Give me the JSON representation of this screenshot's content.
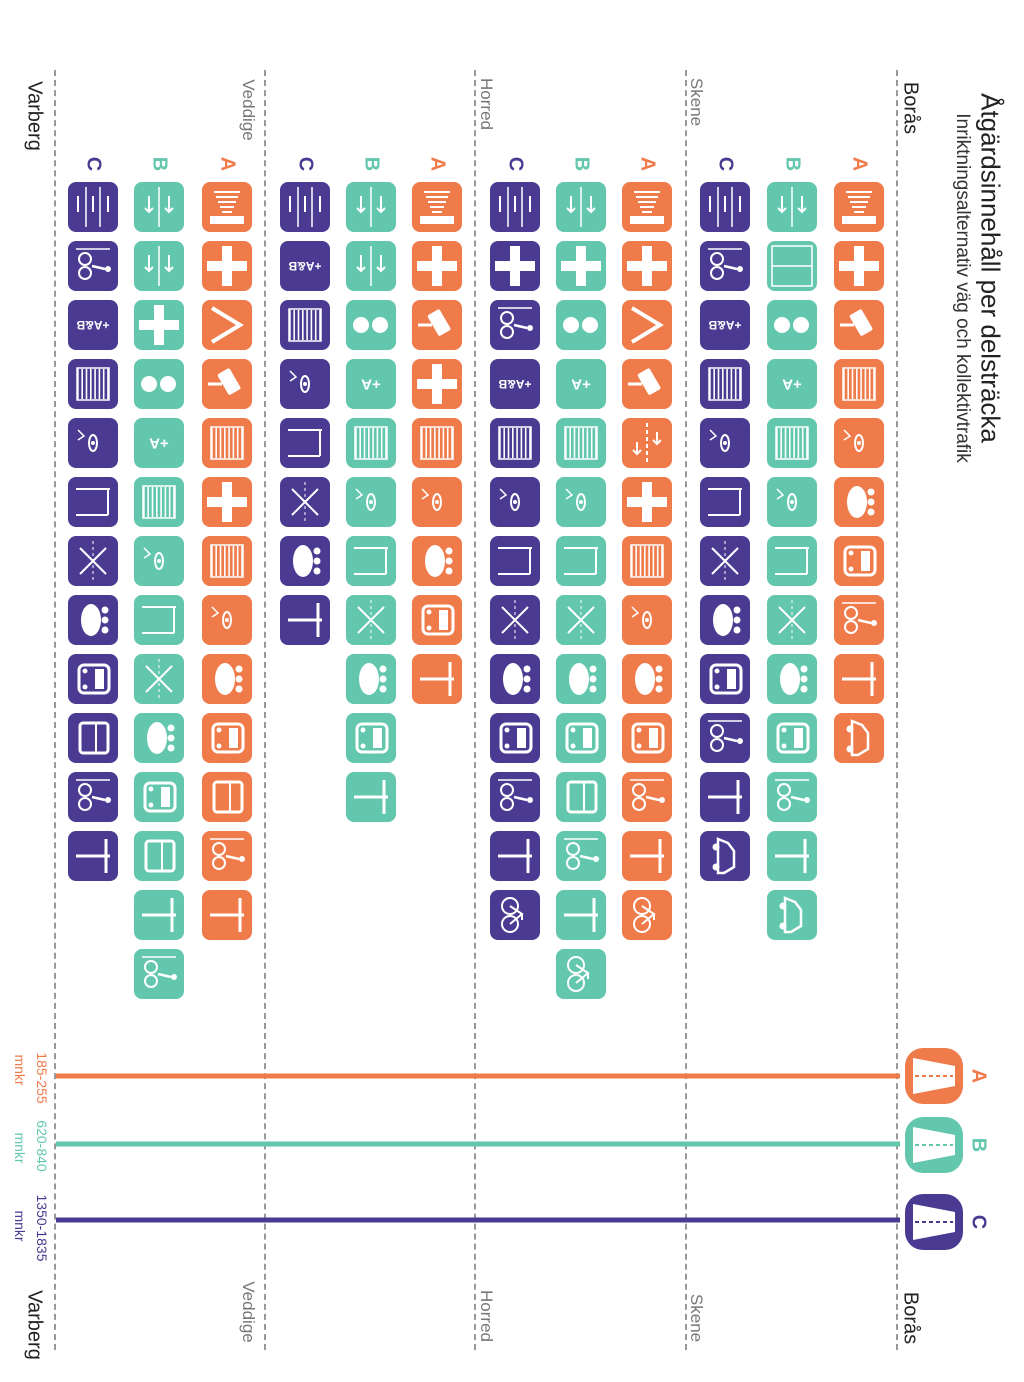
{
  "header": {
    "title": "Åtgärdsinnehåll per delsträcka",
    "subtitle": "Inriktningsalternativ väg och kollektivtrafik"
  },
  "colors": {
    "A": "#ef7b4b",
    "B": "#62c7ad",
    "C": "#4b3a92"
  },
  "route": {
    "start": "Borås",
    "end": "Varberg",
    "stops": [
      "Skene",
      "Horred",
      "Veddige"
    ]
  },
  "alternatives": [
    {
      "letter": "A",
      "cost": "185-255",
      "unit": "mnkr"
    },
    {
      "letter": "B",
      "cost": "620-840",
      "unit": "mnkr"
    },
    {
      "letter": "C",
      "cost": "1350-1835",
      "unit": "mnkr"
    }
  ],
  "sections": [
    {
      "name": "Borås–Skene",
      "rows": [
        {
          "letter": "A",
          "icons": [
            "road-barrier-icon",
            "junction-icon",
            "speed-camera-icon",
            "fence-icon",
            "wildlife-icon",
            "bus-stop-icon",
            "bus-icon",
            "pedestrian-cycle-icon",
            "signpost-icon",
            "car-icon"
          ]
        },
        {
          "letter": "B",
          "icons": [
            "lane-1plus1-icon",
            "crossing-icon",
            "speed-40-60-icon",
            "plus-a-icon",
            "fence-icon",
            "wildlife-icon",
            "lighting-icon",
            "no-crossing-icon",
            "bus-stop-icon",
            "bus-icon",
            "pedestrian-cycle-icon",
            "signpost-icon",
            "car-icon"
          ]
        },
        {
          "letter": "C",
          "icons": [
            "lane-2plus1-icon",
            "pedestrian-cycle-icon",
            "plus-ab-icon",
            "fence-icon",
            "wildlife-icon",
            "lighting-icon",
            "no-crossing-icon",
            "bus-stop-icon",
            "bus-icon",
            "pedestrian-cycle-icon",
            "signpost-icon",
            "car-icon"
          ]
        }
      ]
    },
    {
      "name": "Skene–Horred",
      "rows": [
        {
          "letter": "A",
          "icons": [
            "road-barrier-icon",
            "junction-icon",
            "merge-icon",
            "speed-camera-icon",
            "lane-icon",
            "junction-icon",
            "fence-icon",
            "wildlife-icon",
            "bus-stop-icon",
            "bus-icon",
            "pedestrian-cycle-icon",
            "signpost-icon",
            "bicycle-icon"
          ]
        },
        {
          "letter": "B",
          "icons": [
            "lane-1plus1-icon",
            "junction-icon",
            "speed-40-60-icon",
            "plus-a-icon",
            "fence-icon",
            "wildlife-icon",
            "lighting-icon",
            "no-crossing-icon",
            "bus-stop-icon",
            "bus-icon",
            "train-icon",
            "pedestrian-cycle-icon",
            "signpost-icon",
            "bicycle-icon"
          ]
        },
        {
          "letter": "C",
          "icons": [
            "lane-2plus1-icon",
            "junction-icon",
            "pedestrian-cycle-icon",
            "plus-ab-icon",
            "fence-icon",
            "wildlife-icon",
            "lighting-icon",
            "no-crossing-icon",
            "bus-stop-icon",
            "bus-icon",
            "pedestrian-cycle-icon",
            "signpost-icon",
            "bicycle-icon"
          ]
        }
      ]
    },
    {
      "name": "Horred–Veddige",
      "rows": [
        {
          "letter": "A",
          "icons": [
            "road-barrier-icon",
            "junction-icon",
            "speed-camera-icon",
            "junction-icon",
            "fence-icon",
            "wildlife-icon",
            "bus-stop-icon",
            "bus-icon",
            "signpost-icon"
          ]
        },
        {
          "letter": "B",
          "icons": [
            "lane-1plus1-icon",
            "lane-1plus1-icon",
            "speed-40-60-icon",
            "plus-a-icon",
            "fence-icon",
            "wildlife-icon",
            "lighting-icon",
            "no-crossing-icon",
            "bus-stop-icon",
            "bus-icon",
            "signpost-icon"
          ]
        },
        {
          "letter": "C",
          "icons": [
            "lane-2plus1-icon",
            "plus-ab-icon",
            "fence-icon",
            "wildlife-icon",
            "lighting-icon",
            "no-crossing-icon",
            "bus-stop-icon",
            "signpost-icon"
          ]
        }
      ]
    },
    {
      "name": "Veddige–Varberg",
      "rows": [
        {
          "letter": "A",
          "icons": [
            "road-barrier-icon",
            "junction-icon",
            "merge-icon",
            "speed-camera-icon",
            "fence-icon",
            "junction-icon",
            "fence-icon",
            "wildlife-icon",
            "bus-stop-icon",
            "bus-icon",
            "train-icon",
            "pedestrian-cycle-icon",
            "signpost-icon"
          ]
        },
        {
          "letter": "B",
          "icons": [
            "lane-1plus1-icon",
            "lane-1plus1-icon",
            "junction-icon",
            "speed-40-60-icon",
            "plus-a-icon",
            "fence-icon",
            "wildlife-icon",
            "lighting-icon",
            "no-crossing-icon",
            "bus-stop-icon",
            "bus-icon",
            "train-icon",
            "signpost-icon",
            "pedestrian-cycle-icon"
          ]
        },
        {
          "letter": "C",
          "icons": [
            "lane-2plus1-icon",
            "pedestrian-cycle-icon",
            "plus-ab-icon",
            "fence-icon",
            "wildlife-icon",
            "lighting-icon",
            "no-crossing-icon",
            "bus-stop-icon",
            "bus-icon",
            "train-icon",
            "pedestrian-cycle-icon",
            "signpost-icon"
          ]
        }
      ]
    }
  ]
}
